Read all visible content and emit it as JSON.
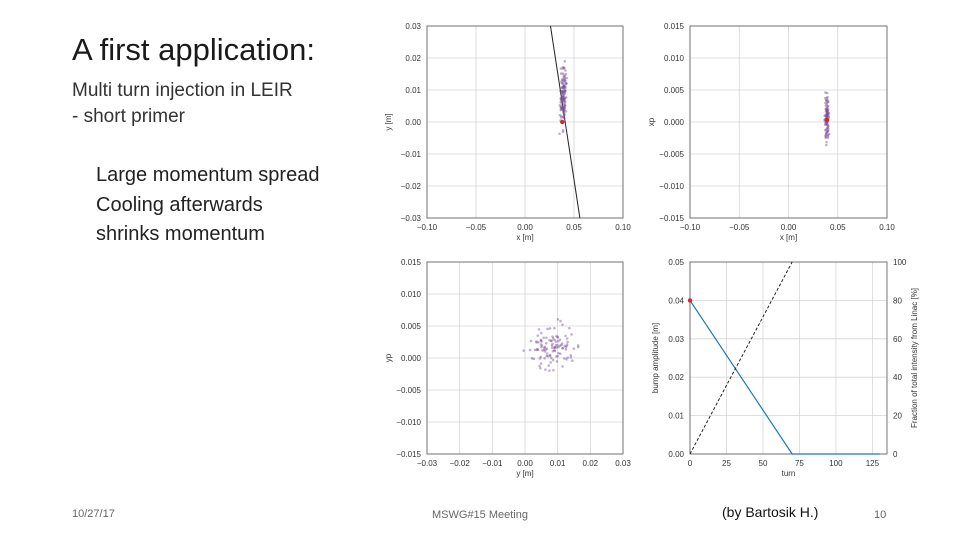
{
  "slide": {
    "title": "A first application:",
    "subtitle_lines": [
      "Multi turn injection in LEIR",
      "- short primer"
    ],
    "bullets": [
      "Large momentum spread",
      "Cooling afterwards",
      "shrinks momentum"
    ],
    "footer": {
      "date": "10/27/17",
      "meeting": "MSWG#15 Meeting",
      "credit": "(by Bartosik H.)",
      "page": "10"
    }
  },
  "colors": {
    "particles": "#7b4f9a",
    "marker": "#d62728",
    "line": "#1f77b4",
    "bump": "#1f77b4"
  },
  "chart_data": [
    {
      "type": "scatter",
      "xlabel": "x [m]",
      "ylabel": "y [m]",
      "xlim": [
        -0.1,
        0.1
      ],
      "ylim": [
        -0.03,
        0.03
      ],
      "xticks": [
        "−0.10",
        "−0.05",
        "0.00",
        "0.05",
        "0.10"
      ],
      "yticks": [
        "0.03",
        "0.02",
        "0.01",
        "0.00",
        "−0.01",
        "−0.02",
        "−0.03"
      ],
      "xtick_values": [
        -0.1,
        -0.05,
        0,
        0.05,
        0.1
      ],
      "ytick_values": [
        0.03,
        0.02,
        0.01,
        0,
        -0.01,
        -0.02,
        -0.03
      ],
      "grid": true,
      "line": {
        "x": [
          0.026,
          0.056
        ],
        "y": [
          0.03,
          -0.03
        ]
      },
      "cluster": {
        "center": [
          0.039,
          0.008
        ],
        "spread": [
          0.003,
          0.009
        ],
        "count": 120
      },
      "marker": [
        0.038,
        0.0
      ]
    },
    {
      "type": "scatter",
      "xlabel": "x [m]",
      "ylabel": "xp",
      "xlim": [
        -0.1,
        0.1
      ],
      "ylim": [
        -0.015,
        0.015
      ],
      "xticks": [
        "−0.10",
        "−0.05",
        "0.00",
        "0.05",
        "0.10"
      ],
      "yticks": [
        "0.015",
        "0.010",
        "0.005",
        "0.000",
        "−0.005",
        "−0.010",
        "−0.015"
      ],
      "xtick_values": [
        -0.1,
        -0.05,
        0,
        0.05,
        0.1
      ],
      "ytick_values": [
        0.015,
        0.01,
        0.005,
        0,
        -0.005,
        -0.01,
        -0.015
      ],
      "grid": true,
      "cluster": {
        "center": [
          0.039,
          0.0005
        ],
        "spread": [
          0.002,
          0.0035
        ],
        "count": 90
      },
      "marker": [
        0.039,
        0.0003
      ]
    },
    {
      "type": "scatter",
      "xlabel": "y [m]",
      "ylabel": "yp",
      "xlim": [
        -0.03,
        0.03
      ],
      "ylim": [
        -0.015,
        0.015
      ],
      "xticks": [
        "−0.03",
        "−0.02",
        "−0.01",
        "0.00",
        "0.01",
        "0.02",
        "0.03"
      ],
      "yticks": [
        "0.015",
        "0.010",
        "0.005",
        "0.000",
        "−0.005",
        "−0.010",
        "−0.015"
      ],
      "xtick_values": [
        -0.03,
        -0.02,
        -0.01,
        0,
        0.01,
        0.02,
        0.03
      ],
      "ytick_values": [
        0.015,
        0.01,
        0.005,
        0,
        -0.005,
        -0.01,
        -0.015
      ],
      "grid": true,
      "cluster": {
        "center": [
          0.008,
          0.0015
        ],
        "spread": [
          0.007,
          0.0035
        ],
        "count": 110
      }
    },
    {
      "type": "line",
      "xlabel": "turn",
      "ylabel": "bump amplitude [m]",
      "y2label": "Fraction of total intensity from Linac [%]",
      "xlim": [
        0,
        135
      ],
      "ylim": [
        0,
        0.05
      ],
      "y2lim": [
        0,
        100
      ],
      "xticks": [
        "0",
        "25",
        "50",
        "75",
        "100",
        "125"
      ],
      "yticks": [
        "0.05",
        "0.04",
        "0.03",
        "0.02",
        "0.01",
        "0.00"
      ],
      "y2ticks": [
        "100",
        "80",
        "60",
        "40",
        "20",
        "0"
      ],
      "xtick_values": [
        0,
        25,
        50,
        75,
        100,
        125
      ],
      "ytick_values": [
        0.05,
        0.04,
        0.03,
        0.02,
        0.01,
        0
      ],
      "y2tick_values": [
        100,
        80,
        60,
        40,
        20,
        0
      ],
      "grid": true,
      "series": [
        {
          "axis": "left",
          "style": "solid",
          "x": [
            0,
            70,
            130
          ],
          "y": [
            0.04,
            0.0,
            0.0
          ]
        },
        {
          "axis": "right",
          "style": "dashed",
          "x": [
            0,
            70
          ],
          "y": [
            0,
            100
          ]
        }
      ],
      "marker": [
        0,
        0.04
      ]
    }
  ]
}
